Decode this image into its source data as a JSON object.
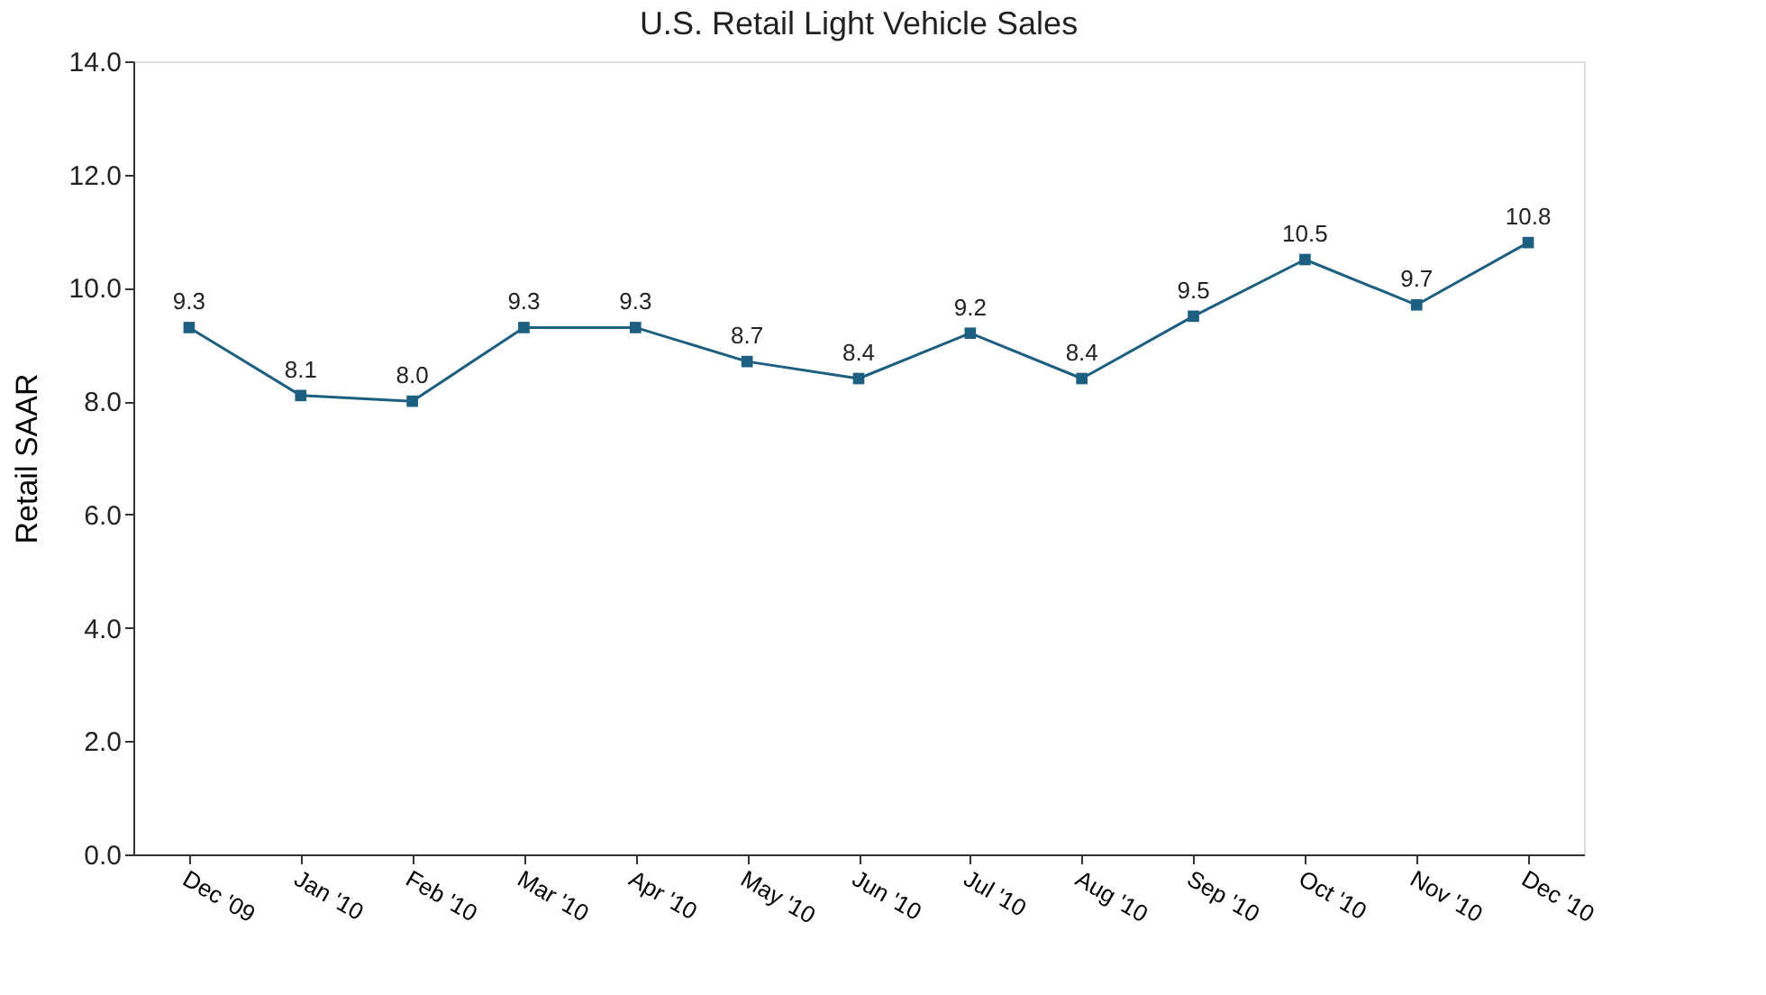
{
  "chart_data": {
    "type": "line",
    "title": "U.S. Retail Light Vehicle Sales",
    "ylabel": "Retail SAAR",
    "categories": [
      "Dec '09",
      "Jan '10",
      "Feb '10",
      "Mar '10",
      "Apr '10",
      "May '10",
      "Jun '10",
      "Jul '10",
      "Aug '10",
      "Sep '10",
      "Oct '10",
      "Nov '10",
      "Dec '10"
    ],
    "series": [
      {
        "color": "#1d5f80",
        "values": [
          9.3,
          8.1,
          8.0,
          9.3,
          9.3,
          8.7,
          8.4,
          9.2,
          8.4,
          9.5,
          10.5,
          9.7,
          10.8
        ]
      }
    ],
    "value_labels": [
      "9.3",
      "8.1",
      "8.0",
      "9.3",
      "9.3",
      "8.7",
      "8.4",
      "9.2",
      "8.4",
      "9.5",
      "10.5",
      "9.7",
      "10.8"
    ],
    "ylim": [
      0,
      14
    ],
    "yticks": [
      {
        "value": 0,
        "label": "0.0"
      },
      {
        "value": 2,
        "label": "2.0"
      },
      {
        "value": 4,
        "label": "4.0"
      },
      {
        "value": 6,
        "label": "6.0"
      },
      {
        "value": 8,
        "label": "8.0"
      },
      {
        "value": 10,
        "label": "10.0"
      },
      {
        "value": 12,
        "label": "12.0"
      },
      {
        "value": 14,
        "label": "14.0"
      }
    ],
    "grid": false,
    "marker": "square",
    "line_style": "solid"
  }
}
